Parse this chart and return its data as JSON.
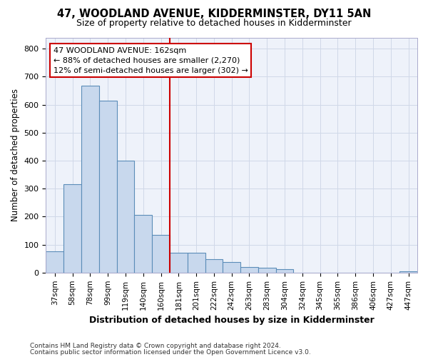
{
  "title": "47, WOODLAND AVENUE, KIDDERMINSTER, DY11 5AN",
  "subtitle": "Size of property relative to detached houses in Kidderminster",
  "xlabel": "Distribution of detached houses by size in Kidderminster",
  "ylabel": "Number of detached properties",
  "footnote1": "Contains HM Land Registry data © Crown copyright and database right 2024.",
  "footnote2": "Contains public sector information licensed under the Open Government Licence v3.0.",
  "annotation_line1": "47 WOODLAND AVENUE: 162sqm",
  "annotation_line2": "← 88% of detached houses are smaller (2,270)",
  "annotation_line3": "12% of semi-detached houses are larger (302) →",
  "bar_color": "#c8d8ed",
  "bar_edge_color": "#5b8db8",
  "vline_color": "#cc0000",
  "annotation_box_edge_color": "#cc0000",
  "grid_color": "#d0d8e8",
  "background_color": "#eef2fa",
  "categories": [
    "37sqm",
    "58sqm",
    "78sqm",
    "99sqm",
    "119sqm",
    "140sqm",
    "160sqm",
    "181sqm",
    "201sqm",
    "222sqm",
    "242sqm",
    "263sqm",
    "283sqm",
    "304sqm",
    "324sqm",
    "345sqm",
    "365sqm",
    "386sqm",
    "406sqm",
    "427sqm",
    "447sqm"
  ],
  "values": [
    75,
    315,
    668,
    615,
    400,
    207,
    135,
    70,
    70,
    48,
    37,
    20,
    18,
    12,
    0,
    0,
    0,
    0,
    0,
    0,
    5
  ],
  "vline_index": 6,
  "ylim": [
    0,
    840
  ],
  "yticks": [
    0,
    100,
    200,
    300,
    400,
    500,
    600,
    700,
    800
  ]
}
